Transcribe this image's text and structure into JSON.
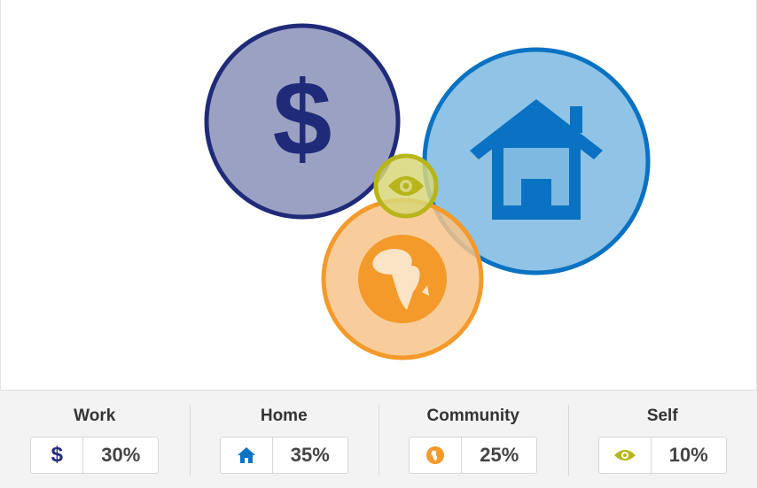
{
  "chart_data": {
    "type": "bubble",
    "series": [
      {
        "name": "Work",
        "value": 30,
        "unit": "%",
        "icon": "dollar-icon",
        "color": "#1f2a78",
        "fill": "#8a90b9"
      },
      {
        "name": "Home",
        "value": 35,
        "unit": "%",
        "icon": "house-icon",
        "color": "#0a72c2",
        "fill": "#7db9e0"
      },
      {
        "name": "Community",
        "value": 25,
        "unit": "%",
        "icon": "globe-icon",
        "color": "#f39a2b",
        "fill": "#f8c48a"
      },
      {
        "name": "Self",
        "value": 10,
        "unit": "%",
        "icon": "eye-icon",
        "color": "#b7b51a",
        "fill": "#d8d77a"
      }
    ]
  },
  "legend": [
    {
      "label": "Work",
      "value": "30%"
    },
    {
      "label": "Home",
      "value": "35%"
    },
    {
      "label": "Community",
      "value": "25%"
    },
    {
      "label": "Self",
      "value": "10%"
    }
  ]
}
